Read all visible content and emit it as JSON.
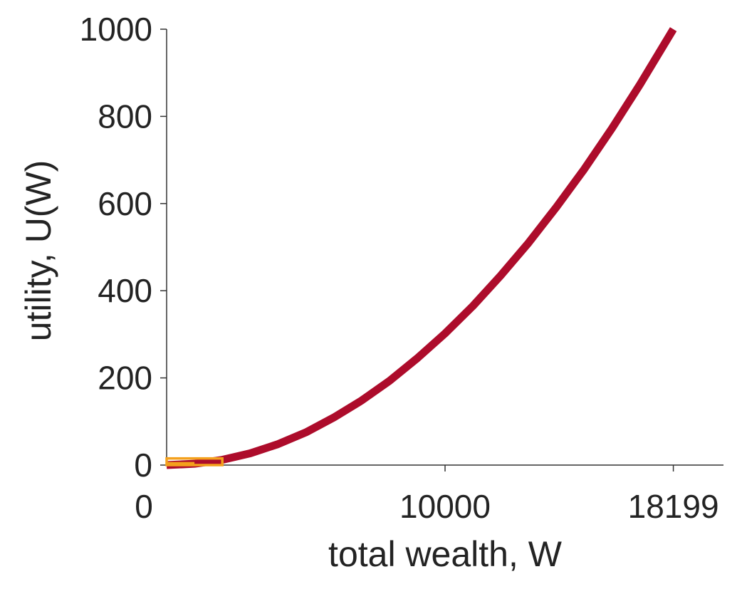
{
  "chart_data": {
    "type": "line",
    "title": "",
    "xlabel": "total wealth, W",
    "ylabel": "utility, U(W)",
    "xlim": [
      0,
      20000
    ],
    "ylim": [
      0,
      1000
    ],
    "x_ticks": [
      {
        "value": 0,
        "label": "0"
      },
      {
        "value": 10000,
        "label": "10000"
      },
      {
        "value": 18199,
        "label": "18199"
      }
    ],
    "y_ticks": [
      {
        "value": 0,
        "label": "0"
      },
      {
        "value": 200,
        "label": "200"
      },
      {
        "value": 400,
        "label": "400"
      },
      {
        "value": 600,
        "label": "600"
      },
      {
        "value": 800,
        "label": "800"
      },
      {
        "value": 1000,
        "label": "1000"
      }
    ],
    "grid": false,
    "legend": "none",
    "series": [
      {
        "color": "#ad0c2b",
        "function": "U(W) = 1000 * (W / 18199)^2",
        "x": [
          0,
          1000,
          2000,
          3000,
          4000,
          5000,
          6000,
          7000,
          8000,
          9000,
          10000,
          11000,
          12000,
          13000,
          14000,
          15000,
          16000,
          17000,
          18199
        ],
        "y": [
          0,
          3,
          12,
          27,
          48,
          75,
          109,
          148,
          193,
          245,
          302,
          365,
          435,
          510,
          592,
          679,
          773,
          873,
          1000
        ]
      }
    ],
    "annotation_box": {
      "color": "#f4a11d",
      "x_range": [
        0,
        2000
      ],
      "y_range": [
        0,
        12
      ]
    }
  }
}
